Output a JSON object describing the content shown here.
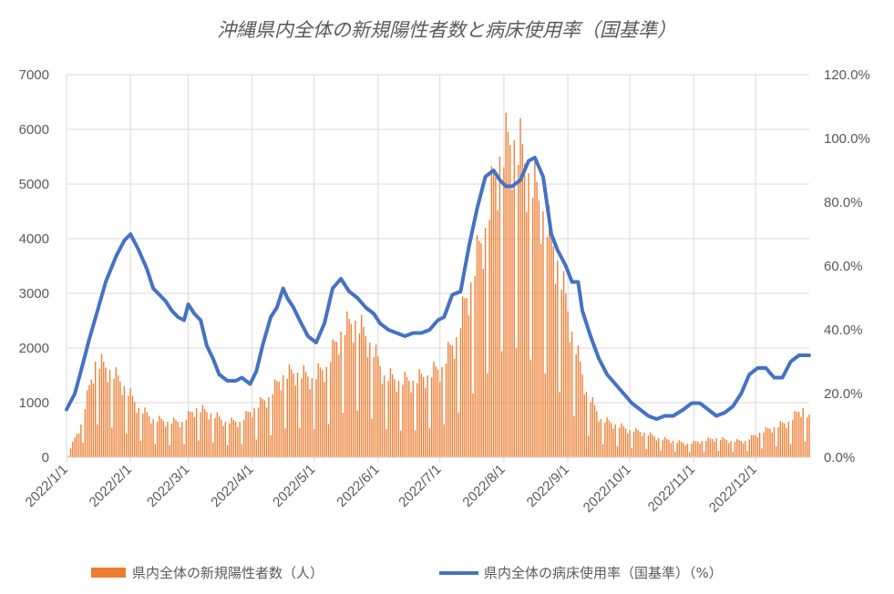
{
  "chart_data": {
    "type": "bar+line",
    "title": "沖縄県内全体の新規陽性者数と病床使用率（国基準）",
    "y_left": {
      "min": 0,
      "max": 7000,
      "ticks": [
        "0",
        "1000",
        "2000",
        "3000",
        "4000",
        "5000",
        "6000",
        "7000"
      ]
    },
    "y_right": {
      "min": 0,
      "max": 120,
      "ticks": [
        "0.0%",
        "20.0%",
        "40.0%",
        "60.0%",
        "80.0%",
        "100.0%",
        "120.0%"
      ]
    },
    "x_tick_labels": [
      "2022/1/1",
      "2022/2/1",
      "2022/3/1",
      "2022/4/1",
      "2022/5/1",
      "2022/6/1",
      "2022/7/1",
      "2022/8/1",
      "2022/9/1",
      "2022/10/1",
      "2022/11/1",
      "2022/12/1"
    ],
    "x_range": [
      "2022/1/1",
      "2022/12/27"
    ],
    "grid": true,
    "legend_position": "bottom",
    "colors": {
      "bars": "#ed7d31",
      "line": "#4472c4",
      "grid": "#d9d9d9",
      "text": "#595959"
    },
    "series": [
      {
        "name": "県内全体の新規陽性者数（人）",
        "type": "bar",
        "axis": "left",
        "note": "daily values from 2022/1/1, interpolated between weekly readings",
        "weekly_dates": [
          "2022/1/1",
          "2022/1/8",
          "2022/1/15",
          "2022/1/22",
          "2022/1/29",
          "2022/2/5",
          "2022/2/12",
          "2022/2/19",
          "2022/2/26",
          "2022/3/5",
          "2022/3/12",
          "2022/3/19",
          "2022/3/26",
          "2022/4/2",
          "2022/4/9",
          "2022/4/16",
          "2022/4/23",
          "2022/4/30",
          "2022/5/7",
          "2022/5/14",
          "2022/5/21",
          "2022/5/28",
          "2022/6/4",
          "2022/6/11",
          "2022/6/18",
          "2022/6/25",
          "2022/7/2",
          "2022/7/9",
          "2022/7/16",
          "2022/7/23",
          "2022/7/30",
          "2022/8/6",
          "2022/8/13",
          "2022/8/20",
          "2022/8/27",
          "2022/9/3",
          "2022/9/10",
          "2022/9/17",
          "2022/9/24",
          "2022/10/1",
          "2022/10/8",
          "2022/10/15",
          "2022/10/22",
          "2022/10/29",
          "2022/11/5",
          "2022/11/12",
          "2022/11/19",
          "2022/11/26",
          "2022/12/3",
          "2022/12/10",
          "2022/12/17",
          "2022/12/24",
          "2022/12/27"
        ],
        "weekly_values": [
          0,
          600,
          1750,
          1600,
          1300,
          900,
          700,
          650,
          650,
          900,
          800,
          650,
          650,
          900,
          1100,
          1500,
          1550,
          1450,
          1650,
          2300,
          2500,
          2100,
          1500,
          1400,
          1400,
          1500,
          1650,
          2200,
          3200,
          4200,
          5500,
          5800,
          5200,
          4500,
          3600,
          2300,
          1200,
          700,
          600,
          500,
          450,
          350,
          300,
          250,
          300,
          350,
          300,
          300,
          450,
          550,
          650,
          900,
          700
        ]
      },
      {
        "name": "県内全体の病床使用率（国基準）（%）",
        "type": "line",
        "axis": "right",
        "x": [
          "2022/1/1",
          "2022/1/5",
          "2022/1/8",
          "2022/1/12",
          "2022/1/16",
          "2022/1/20",
          "2022/1/25",
          "2022/1/29",
          "2022/2/1",
          "2022/2/5",
          "2022/2/9",
          "2022/2/12",
          "2022/2/18",
          "2022/2/21",
          "2022/2/24",
          "2022/2/27",
          "2022/3/1",
          "2022/3/4",
          "2022/3/7",
          "2022/3/10",
          "2022/3/13",
          "2022/3/16",
          "2022/3/20",
          "2022/3/24",
          "2022/3/27",
          "2022/3/31",
          "2022/4/3",
          "2022/4/6",
          "2022/4/10",
          "2022/4/13",
          "2022/4/16",
          "2022/4/18",
          "2022/4/21",
          "2022/4/24",
          "2022/4/28",
          "2022/5/2",
          "2022/5/6",
          "2022/5/10",
          "2022/5/14",
          "2022/5/18",
          "2022/5/22",
          "2022/5/26",
          "2022/5/30",
          "2022/6/2",
          "2022/6/6",
          "2022/6/10",
          "2022/6/14",
          "2022/6/18",
          "2022/6/22",
          "2022/6/26",
          "2022/6/30",
          "2022/7/3",
          "2022/7/7",
          "2022/7/11",
          "2022/7/15",
          "2022/7/19",
          "2022/7/23",
          "2022/7/27",
          "2022/7/30",
          "2022/8/2",
          "2022/8/5",
          "2022/8/9",
          "2022/8/13",
          "2022/8/16",
          "2022/8/20",
          "2022/8/24",
          "2022/8/27",
          "2022/8/31",
          "2022/9/3",
          "2022/9/6",
          "2022/9/8",
          "2022/9/12",
          "2022/9/16",
          "2022/9/20",
          "2022/9/24",
          "2022/9/28",
          "2022/10/2",
          "2022/10/6",
          "2022/10/10",
          "2022/10/14",
          "2022/10/18",
          "2022/10/22",
          "2022/10/27",
          "2022/10/31",
          "2022/11/4",
          "2022/11/8",
          "2022/11/12",
          "2022/11/16",
          "2022/11/20",
          "2022/11/24",
          "2022/11/28",
          "2022/12/2",
          "2022/12/6",
          "2022/12/10",
          "2022/12/14",
          "2022/12/18",
          "2022/12/22",
          "2022/12/25",
          "2022/12/27"
        ],
        "y": [
          15,
          20,
          27,
          37,
          46,
          55,
          63,
          68,
          70,
          65,
          59,
          53,
          49,
          46,
          44,
          43,
          48,
          45,
          43,
          35,
          31,
          26,
          24,
          24,
          25,
          23,
          27,
          35,
          44,
          47,
          53,
          50,
          47,
          43,
          38,
          36,
          42,
          53,
          56,
          52,
          50,
          47,
          45,
          42,
          40,
          39,
          38,
          39,
          39,
          40,
          43,
          44,
          51,
          52,
          66,
          78,
          88,
          90,
          87,
          85,
          85,
          87,
          93,
          94,
          88,
          70,
          65,
          60,
          55,
          55,
          46,
          38,
          31,
          26,
          23,
          20,
          17,
          15,
          13,
          12,
          13,
          13,
          15,
          17,
          17,
          15,
          13,
          14,
          16,
          20,
          26,
          28,
          28,
          25,
          25,
          30,
          32,
          32,
          32
        ]
      }
    ]
  }
}
